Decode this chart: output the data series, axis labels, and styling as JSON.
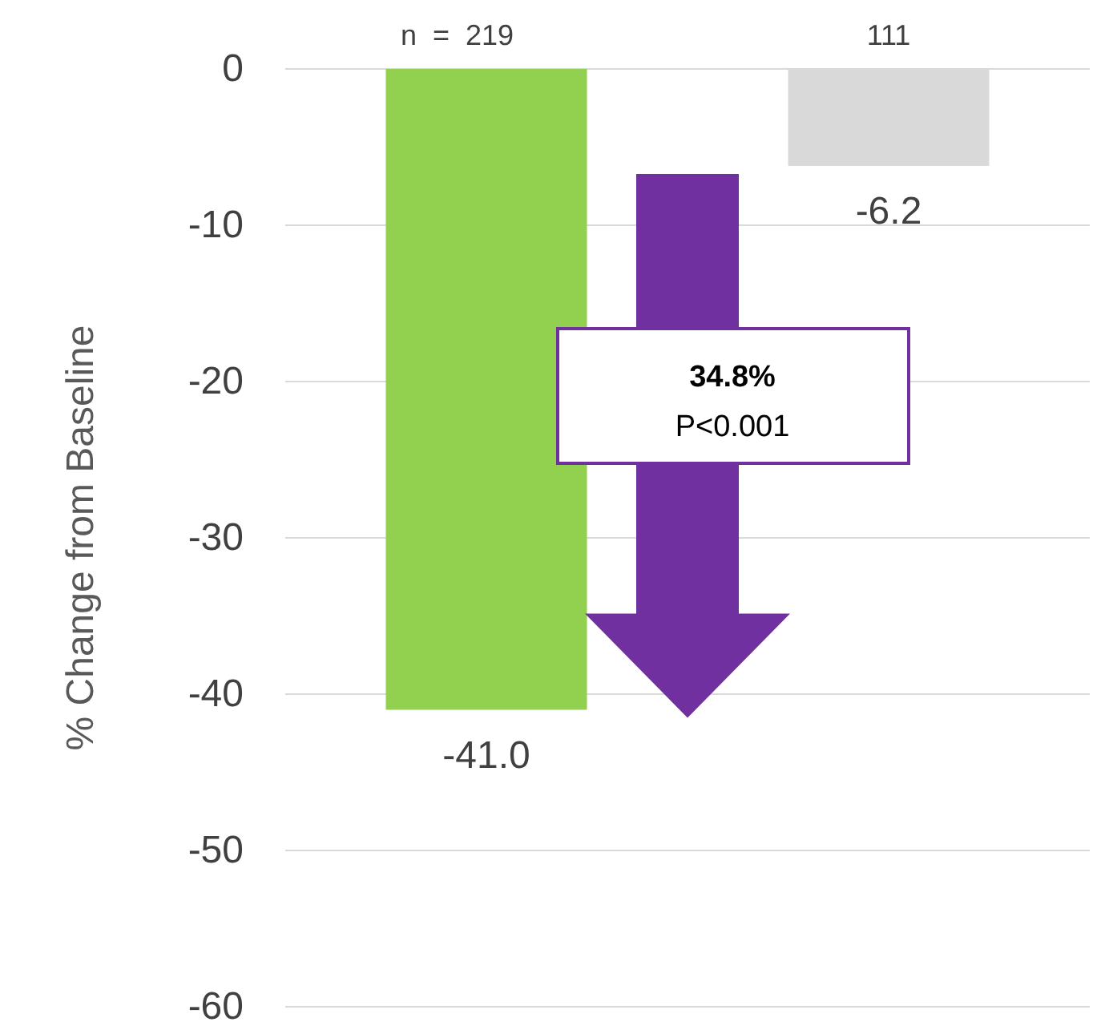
{
  "chart_data": {
    "type": "bar",
    "ylabel": "% Change from Baseline",
    "categories": [
      null,
      null
    ],
    "values": [
      -41.0,
      -6.2
    ],
    "colors": [
      "#92d050",
      "#d9d9d9"
    ],
    "value_labels": [
      "-41.0",
      "-6.2"
    ],
    "ylim": [
      -60,
      0
    ],
    "yticks": [
      0,
      -10,
      -20,
      -30,
      -40,
      -50,
      -60
    ],
    "grid": "y",
    "annotations": [
      "n  =  219",
      "111",
      "34.8%",
      "P<0.001"
    ]
  }
}
